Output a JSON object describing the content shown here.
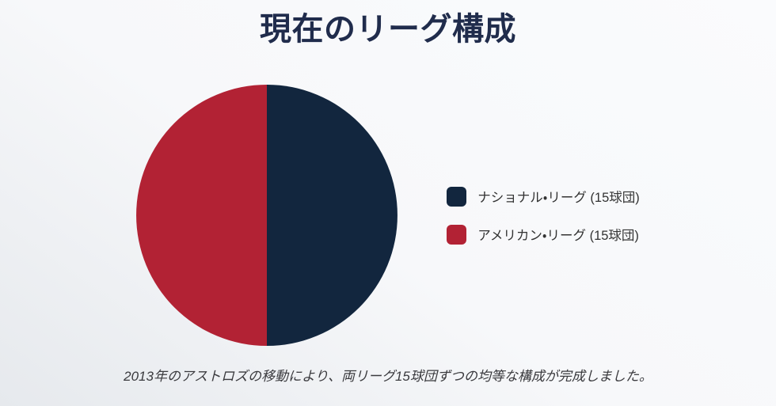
{
  "title": "現在のリーグ構成",
  "caption": "2013年のアストロズの移動により、両リーグ15球団ずつの均等な構成が完成しました。",
  "colors": {
    "title_text": "#202c4c",
    "body_text": "#333333",
    "caption_text": "#3a3a3e",
    "national_navy": "#12263e",
    "american_red": "#b22234",
    "background_light": "#fafbfd",
    "background_dark": "#e6e9ed"
  },
  "legend": {
    "items": [
      {
        "label": "ナショナル・リーグ (15球団)",
        "color": "#12263e"
      },
      {
        "label": "アメリカン・リーグ (15球団)",
        "color": "#b22234"
      }
    ]
  },
  "chart_data": {
    "type": "pie",
    "title": "現在のリーグ構成",
    "labels": [
      "ナショナル・リーグ (15球団)",
      "アメリカン・リーグ (15球団)"
    ],
    "slice_names": [
      "national-league",
      "american-league"
    ],
    "values": [
      15,
      15
    ],
    "unit": "球団",
    "colors": [
      "#12263e",
      "#b22234"
    ],
    "legend_position": "right",
    "start_angle_deg": 0,
    "direction": "clockwise",
    "caption": "2013年のアストロズの移動により、両リーグ15球団ずつの均等な構成が完成しました。"
  }
}
